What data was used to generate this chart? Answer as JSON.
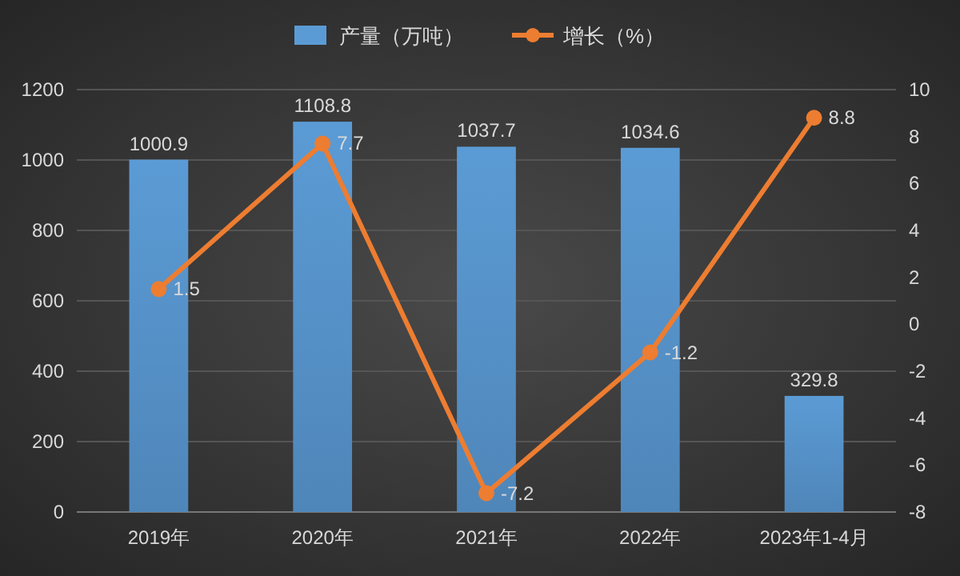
{
  "chart_data": {
    "type": "bar",
    "categories": [
      "2019年",
      "2020年",
      "2021年",
      "2022年",
      "2023年1-4月"
    ],
    "series": [
      {
        "name": "产量（万吨）",
        "color": "#5b9bd5",
        "values": [
          1000.9,
          1108.8,
          1037.7,
          1034.6,
          329.8
        ]
      },
      {
        "name": "增长（%）",
        "type": "line",
        "axis": "y2",
        "color": "#ed7d31",
        "values": [
          1.5,
          7.7,
          -7.2,
          -1.2,
          8.8
        ]
      }
    ],
    "ylim": [
      0,
      1200
    ],
    "yticks": [
      0,
      200,
      400,
      600,
      800,
      1000,
      1200
    ],
    "y2lim": [
      -8,
      10
    ],
    "y2ticks": [
      -8,
      -6,
      -4,
      -2,
      0,
      2,
      4,
      6,
      8,
      10
    ],
    "grid": "y",
    "legend": "top",
    "data_labels": true,
    "marker": "circle",
    "line_style": "solid"
  }
}
